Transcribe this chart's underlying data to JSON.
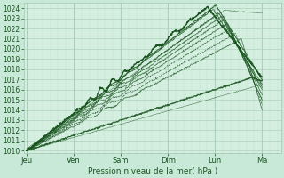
{
  "title": "",
  "xlabel": "Pression niveau de la mer( hPa )",
  "bg_color": "#c8e8d8",
  "plot_bg_color": "#d4eee0",
  "grid_major_color": "#a8cdb8",
  "grid_minor_color": "#bcddc8",
  "line_color": "#1a5520",
  "ylim": [
    1009.8,
    1024.5
  ],
  "yticks": [
    1010,
    1011,
    1012,
    1013,
    1014,
    1015,
    1016,
    1017,
    1018,
    1019,
    1020,
    1021,
    1022,
    1023,
    1024
  ],
  "x_day_labels": [
    "Jeu",
    "Ven",
    "Sam",
    "Dim",
    "Lun",
    "Ma"
  ],
  "x_day_positions": [
    0.0,
    0.833,
    1.667,
    2.5,
    3.333,
    4.167
  ],
  "xlim": [
    -0.05,
    4.5
  ],
  "num_points": 500
}
